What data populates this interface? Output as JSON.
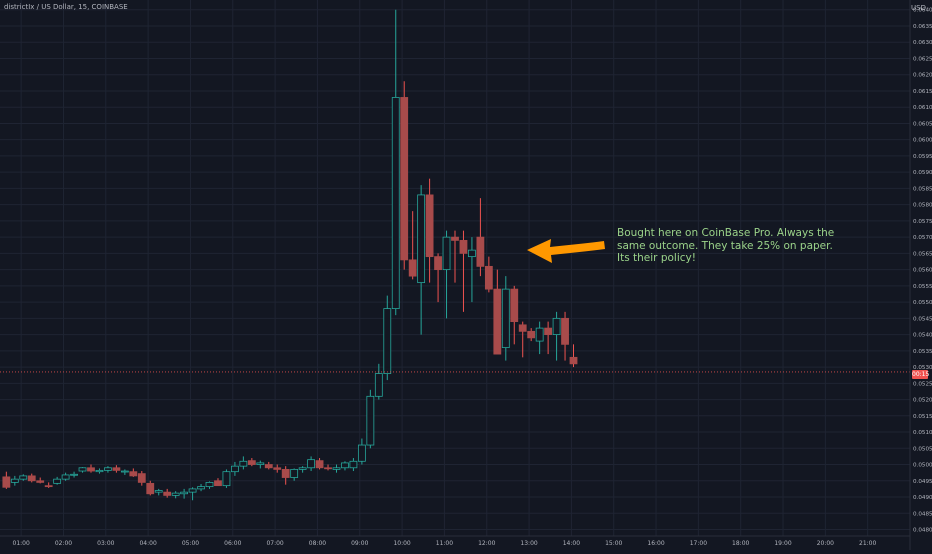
{
  "header": {
    "symbol": "districtIx / US Dollar, 15, COINBASE",
    "currency": "USD"
  },
  "annotation": {
    "lines": [
      "Bought here on CoinBase Pro. Always the",
      "same outcome. They take 25% on paper.",
      "Its their policy!"
    ],
    "text_color": "#9bd38a",
    "arrow_color": "#ff9800"
  },
  "last_price_tag": "00:15",
  "colors": {
    "background": "#131722",
    "grid": "#1f2433",
    "up": "#26a69a",
    "down": "#ef5350",
    "candle_down_fill": "#a84b4b",
    "candle_up_fill": "#131722",
    "last_price_line": "#ef5350"
  },
  "chart_data": {
    "type": "candlestick",
    "x_ticks": [
      "01:00",
      "02:00",
      "03:00",
      "04:00",
      "05:00",
      "06:00",
      "07:00",
      "08:00",
      "09:00",
      "10:00",
      "11:00",
      "12:00",
      "13:00",
      "14:00",
      "15:00",
      "16:00",
      "17:00",
      "18:00",
      "19:00",
      "20:00",
      "21:00"
    ],
    "y_ticks": [
      "0.0640",
      "0.0635",
      "0.0630",
      "0.0625",
      "0.0620",
      "0.0615",
      "0.0610",
      "0.0605",
      "0.0600",
      "0.0595",
      "0.0590",
      "0.0585",
      "0.0580",
      "0.0575",
      "0.0570",
      "0.0565",
      "0.0560",
      "0.0555",
      "0.0550",
      "0.0545",
      "0.0540",
      "0.0535",
      "0.0530",
      "0.0525",
      "0.0520",
      "0.0515",
      "0.0510",
      "0.0505",
      "0.0500",
      "0.0495",
      "0.0490",
      "0.0485",
      "0.0480"
    ],
    "ylim": [
      0.0478,
      0.0643
    ],
    "xlim_hours": [
      0.5,
      22.0
    ],
    "last_price": 0.05285,
    "candles": [
      {
        "t": 0.65,
        "o": 0.04962,
        "h": 0.04978,
        "l": 0.04925,
        "c": 0.0493
      },
      {
        "t": 0.85,
        "o": 0.04945,
        "h": 0.04965,
        "l": 0.04935,
        "c": 0.04955
      },
      {
        "t": 1.05,
        "o": 0.04955,
        "h": 0.0497,
        "l": 0.0495,
        "c": 0.04965
      },
      {
        "t": 1.25,
        "o": 0.04965,
        "h": 0.04972,
        "l": 0.04945,
        "c": 0.0495
      },
      {
        "t": 1.45,
        "o": 0.0495,
        "h": 0.0496,
        "l": 0.04942,
        "c": 0.04945
      },
      {
        "t": 1.65,
        "o": 0.04935,
        "h": 0.04945,
        "l": 0.04928,
        "c": 0.04932
      },
      {
        "t": 1.85,
        "o": 0.04942,
        "h": 0.04962,
        "l": 0.04938,
        "c": 0.04955
      },
      {
        "t": 2.05,
        "o": 0.04955,
        "h": 0.04975,
        "l": 0.0495,
        "c": 0.04968
      },
      {
        "t": 2.25,
        "o": 0.04968,
        "h": 0.04978,
        "l": 0.0496,
        "c": 0.0497
      },
      {
        "t": 2.45,
        "o": 0.0498,
        "h": 0.04992,
        "l": 0.04975,
        "c": 0.0499
      },
      {
        "t": 2.65,
        "o": 0.0499,
        "h": 0.05,
        "l": 0.04975,
        "c": 0.0498
      },
      {
        "t": 2.85,
        "o": 0.04978,
        "h": 0.04988,
        "l": 0.04972,
        "c": 0.04982
      },
      {
        "t": 3.05,
        "o": 0.04982,
        "h": 0.04995,
        "l": 0.04975,
        "c": 0.0499
      },
      {
        "t": 3.25,
        "o": 0.0499,
        "h": 0.04998,
        "l": 0.04975,
        "c": 0.04982
      },
      {
        "t": 3.45,
        "o": 0.04978,
        "h": 0.04985,
        "l": 0.04968,
        "c": 0.0498
      },
      {
        "t": 3.65,
        "o": 0.04978,
        "h": 0.04988,
        "l": 0.04962,
        "c": 0.04965
      },
      {
        "t": 3.85,
        "o": 0.04972,
        "h": 0.0498,
        "l": 0.04935,
        "c": 0.04945
      },
      {
        "t": 4.05,
        "o": 0.04942,
        "h": 0.0495,
        "l": 0.04905,
        "c": 0.0491
      },
      {
        "t": 4.25,
        "o": 0.04915,
        "h": 0.04925,
        "l": 0.04905,
        "c": 0.0492
      },
      {
        "t": 4.45,
        "o": 0.04915,
        "h": 0.04925,
        "l": 0.04898,
        "c": 0.04905
      },
      {
        "t": 4.65,
        "o": 0.04905,
        "h": 0.04918,
        "l": 0.04896,
        "c": 0.04912
      },
      {
        "t": 4.85,
        "o": 0.0491,
        "h": 0.04925,
        "l": 0.04895,
        "c": 0.04915
      },
      {
        "t": 5.05,
        "o": 0.04915,
        "h": 0.0493,
        "l": 0.0489,
        "c": 0.04925
      },
      {
        "t": 5.25,
        "o": 0.04925,
        "h": 0.0494,
        "l": 0.04918,
        "c": 0.04932
      },
      {
        "t": 5.45,
        "o": 0.04932,
        "h": 0.04948,
        "l": 0.04925,
        "c": 0.04945
      },
      {
        "t": 5.65,
        "o": 0.0495,
        "h": 0.04958,
        "l": 0.04935,
        "c": 0.04935
      },
      {
        "t": 5.85,
        "o": 0.04935,
        "h": 0.04985,
        "l": 0.04928,
        "c": 0.04978
      },
      {
        "t": 6.05,
        "o": 0.04978,
        "h": 0.05008,
        "l": 0.04965,
        "c": 0.04995
      },
      {
        "t": 6.25,
        "o": 0.04995,
        "h": 0.05025,
        "l": 0.04985,
        "c": 0.0501
      },
      {
        "t": 6.45,
        "o": 0.05012,
        "h": 0.0502,
        "l": 0.04995,
        "c": 0.05
      },
      {
        "t": 6.65,
        "o": 0.05,
        "h": 0.05012,
        "l": 0.04988,
        "c": 0.05005
      },
      {
        "t": 6.85,
        "o": 0.05,
        "h": 0.05008,
        "l": 0.04985,
        "c": 0.0499
      },
      {
        "t": 7.05,
        "o": 0.0499,
        "h": 0.05,
        "l": 0.04975,
        "c": 0.04985
      },
      {
        "t": 7.25,
        "o": 0.04985,
        "h": 0.04995,
        "l": 0.04938,
        "c": 0.0496
      },
      {
        "t": 7.45,
        "o": 0.0496,
        "h": 0.04988,
        "l": 0.0495,
        "c": 0.04985
      },
      {
        "t": 7.65,
        "o": 0.04985,
        "h": 0.04995,
        "l": 0.04975,
        "c": 0.0499
      },
      {
        "t": 7.85,
        "o": 0.0499,
        "h": 0.05025,
        "l": 0.0498,
        "c": 0.05015
      },
      {
        "t": 8.05,
        "o": 0.05012,
        "h": 0.0502,
        "l": 0.04985,
        "c": 0.0499
      },
      {
        "t": 8.25,
        "o": 0.0499,
        "h": 0.05,
        "l": 0.04982,
        "c": 0.04988
      },
      {
        "t": 8.45,
        "o": 0.04985,
        "h": 0.05,
        "l": 0.04975,
        "c": 0.0499
      },
      {
        "t": 8.65,
        "o": 0.0499,
        "h": 0.0501,
        "l": 0.04982,
        "c": 0.05005
      },
      {
        "t": 8.85,
        "o": 0.0499,
        "h": 0.0502,
        "l": 0.0498,
        "c": 0.0501
      },
      {
        "t": 9.05,
        "o": 0.0501,
        "h": 0.0508,
        "l": 0.05,
        "c": 0.0506
      },
      {
        "t": 9.25,
        "o": 0.0506,
        "h": 0.0523,
        "l": 0.0505,
        "c": 0.0521
      },
      {
        "t": 9.45,
        "o": 0.0521,
        "h": 0.0531,
        "l": 0.052,
        "c": 0.0528
      },
      {
        "t": 9.65,
        "o": 0.0528,
        "h": 0.0552,
        "l": 0.0526,
        "c": 0.0548
      },
      {
        "t": 9.85,
        "o": 0.0548,
        "h": 0.064,
        "l": 0.0546,
        "c": 0.0613
      },
      {
        "t": 10.05,
        "o": 0.0613,
        "h": 0.0618,
        "l": 0.056,
        "c": 0.0563
      },
      {
        "t": 10.25,
        "o": 0.0563,
        "h": 0.0578,
        "l": 0.0557,
        "c": 0.0558
      },
      {
        "t": 10.45,
        "o": 0.0556,
        "h": 0.0586,
        "l": 0.054,
        "c": 0.0583
      },
      {
        "t": 10.65,
        "o": 0.0583,
        "h": 0.0588,
        "l": 0.0556,
        "c": 0.0564
      },
      {
        "t": 10.85,
        "o": 0.0564,
        "h": 0.0565,
        "l": 0.055,
        "c": 0.056
      },
      {
        "t": 11.05,
        "o": 0.056,
        "h": 0.0572,
        "l": 0.0545,
        "c": 0.057
      },
      {
        "t": 11.25,
        "o": 0.057,
        "h": 0.0572,
        "l": 0.0556,
        "c": 0.0569
      },
      {
        "t": 11.45,
        "o": 0.0569,
        "h": 0.0572,
        "l": 0.0547,
        "c": 0.0565
      },
      {
        "t": 11.65,
        "o": 0.0564,
        "h": 0.057,
        "l": 0.055,
        "c": 0.0566
      },
      {
        "t": 11.85,
        "o": 0.057,
        "h": 0.0582,
        "l": 0.0558,
        "c": 0.0561
      },
      {
        "t": 12.05,
        "o": 0.0561,
        "h": 0.0564,
        "l": 0.0553,
        "c": 0.0554
      },
      {
        "t": 12.25,
        "o": 0.0554,
        "h": 0.056,
        "l": 0.0534,
        "c": 0.0534
      },
      {
        "t": 12.45,
        "o": 0.0536,
        "h": 0.0558,
        "l": 0.0532,
        "c": 0.0554
      },
      {
        "t": 12.65,
        "o": 0.0554,
        "h": 0.0555,
        "l": 0.0537,
        "c": 0.0544
      },
      {
        "t": 12.85,
        "o": 0.0543,
        "h": 0.0544,
        "l": 0.0533,
        "c": 0.0541
      },
      {
        "t": 13.05,
        "o": 0.0541,
        "h": 0.0542,
        "l": 0.0538,
        "c": 0.0539
      },
      {
        "t": 13.25,
        "o": 0.0538,
        "h": 0.0544,
        "l": 0.0534,
        "c": 0.0542
      },
      {
        "t": 13.45,
        "o": 0.0542,
        "h": 0.0544,
        "l": 0.0534,
        "c": 0.054
      },
      {
        "t": 13.65,
        "o": 0.054,
        "h": 0.0547,
        "l": 0.0532,
        "c": 0.0545
      },
      {
        "t": 13.85,
        "o": 0.0545,
        "h": 0.0547,
        "l": 0.0532,
        "c": 0.0537
      },
      {
        "t": 14.05,
        "o": 0.0533,
        "h": 0.0537,
        "l": 0.053,
        "c": 0.0531
      }
    ]
  }
}
